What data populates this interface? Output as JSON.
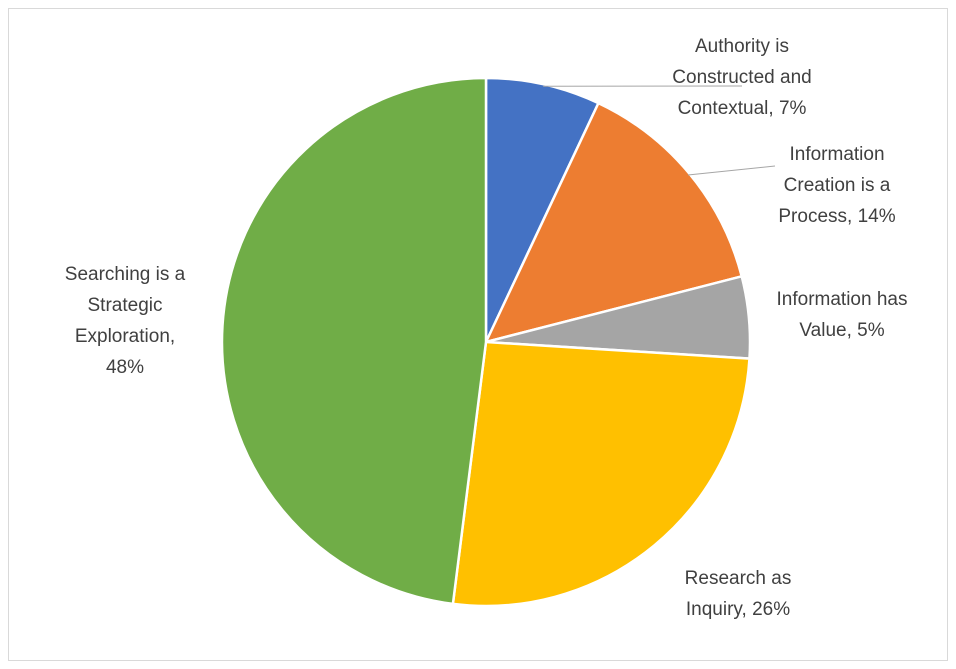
{
  "chart_data": {
    "type": "pie",
    "title": "",
    "slices": [
      {
        "name": "Authority is Constructed and Contextual",
        "value": 7,
        "label_lines": [
          "Authority is",
          "Constructed and",
          "Contextual, 7%"
        ],
        "color": "#4472c4"
      },
      {
        "name": "Information Creation is a Process",
        "value": 14,
        "label_lines": [
          "Information",
          "Creation is a",
          "Process, 14%"
        ],
        "color": "#ed7d31"
      },
      {
        "name": "Information has Value",
        "value": 5,
        "label_lines": [
          "Information has",
          "Value, 5%"
        ],
        "color": "#a5a5a5"
      },
      {
        "name": "Research as Inquiry",
        "value": 26,
        "label_lines": [
          "Research as",
          "Inquiry, 26%"
        ],
        "color": "#ffc000"
      },
      {
        "name": "Searching is a Strategic Exploration",
        "value": 48,
        "label_lines": [
          "Searching is a",
          "Strategic",
          "Exploration,",
          "48%"
        ],
        "color": "#70ad47"
      }
    ]
  }
}
